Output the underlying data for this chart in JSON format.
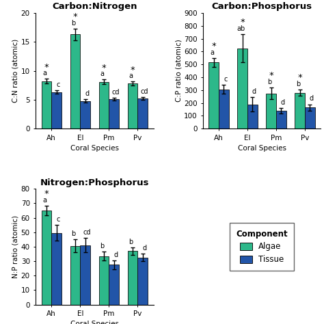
{
  "cn": {
    "title": "Carbon:Nitrogen",
    "ylabel": "C:N ratio (atomic)",
    "xlabel": "Coral Species",
    "ylim": [
      0,
      20
    ],
    "yticks": [
      0,
      5,
      10,
      15,
      20
    ],
    "species": [
      "Ah",
      "El",
      "Pm",
      "Pv"
    ],
    "algae_means": [
      8.2,
      16.3,
      8.1,
      7.8
    ],
    "algae_se": [
      0.4,
      1.0,
      0.4,
      0.35
    ],
    "tissue_means": [
      6.3,
      4.8,
      5.1,
      5.2
    ],
    "tissue_se": [
      0.3,
      0.3,
      0.25,
      0.25
    ],
    "algae_labels": [
      "a",
      "b",
      "a",
      "a"
    ],
    "tissue_labels": [
      "c",
      "d",
      "cd",
      "cd"
    ],
    "group_star": [
      true,
      true,
      true,
      true
    ]
  },
  "cp": {
    "title": "Carbon:Phosphorus",
    "ylabel": "C:P ratio (atomic)",
    "xlabel": "Coral Species",
    "ylim": [
      0,
      900
    ],
    "yticks": [
      0,
      100,
      200,
      300,
      400,
      500,
      600,
      700,
      800,
      900
    ],
    "species": [
      "Ah",
      "El",
      "Pm",
      "Pv"
    ],
    "algae_means": [
      515,
      625,
      275,
      280
    ],
    "algae_se": [
      35,
      110,
      45,
      25
    ],
    "tissue_means": [
      305,
      190,
      140,
      165
    ],
    "tissue_se": [
      35,
      55,
      20,
      25
    ],
    "algae_labels": [
      "a",
      "ab",
      "b",
      "b"
    ],
    "tissue_labels": [
      "c",
      "d",
      "d",
      "d"
    ],
    "group_star": [
      true,
      true,
      true,
      true
    ]
  },
  "np": {
    "title": "Nitrogen:Phosphorus",
    "ylabel": "N:P ratio (atomic)",
    "xlabel": "Coral Species",
    "ylim": [
      0,
      80
    ],
    "yticks": [
      0,
      10,
      20,
      30,
      40,
      50,
      60,
      70,
      80
    ],
    "species": [
      "Ah",
      "El",
      "Pm",
      "Pv"
    ],
    "algae_means": [
      65.0,
      40.5,
      33.5,
      37.0
    ],
    "algae_se": [
      3.5,
      4.5,
      3.0,
      2.5
    ],
    "tissue_means": [
      49.5,
      41.0,
      27.5,
      32.5
    ],
    "tissue_se": [
      5.5,
      5.0,
      3.0,
      2.5
    ],
    "algae_labels": [
      "a",
      "b",
      "b",
      "b"
    ],
    "tissue_labels": [
      "c",
      "cd",
      "d",
      "d"
    ],
    "group_star": [
      true,
      false,
      false,
      false
    ]
  },
  "algae_color": "#2db88a",
  "tissue_color": "#2255a8",
  "bar_width": 0.35,
  "bar_edge_color": "#111111",
  "bar_linewidth": 0.6,
  "error_linewidth": 1.0,
  "error_capsize": 2.5,
  "title_fontsize": 9.5,
  "label_fontsize": 7.5,
  "tick_fontsize": 7.5,
  "annot_fontsize": 7.0,
  "star_fontsize": 8.5
}
